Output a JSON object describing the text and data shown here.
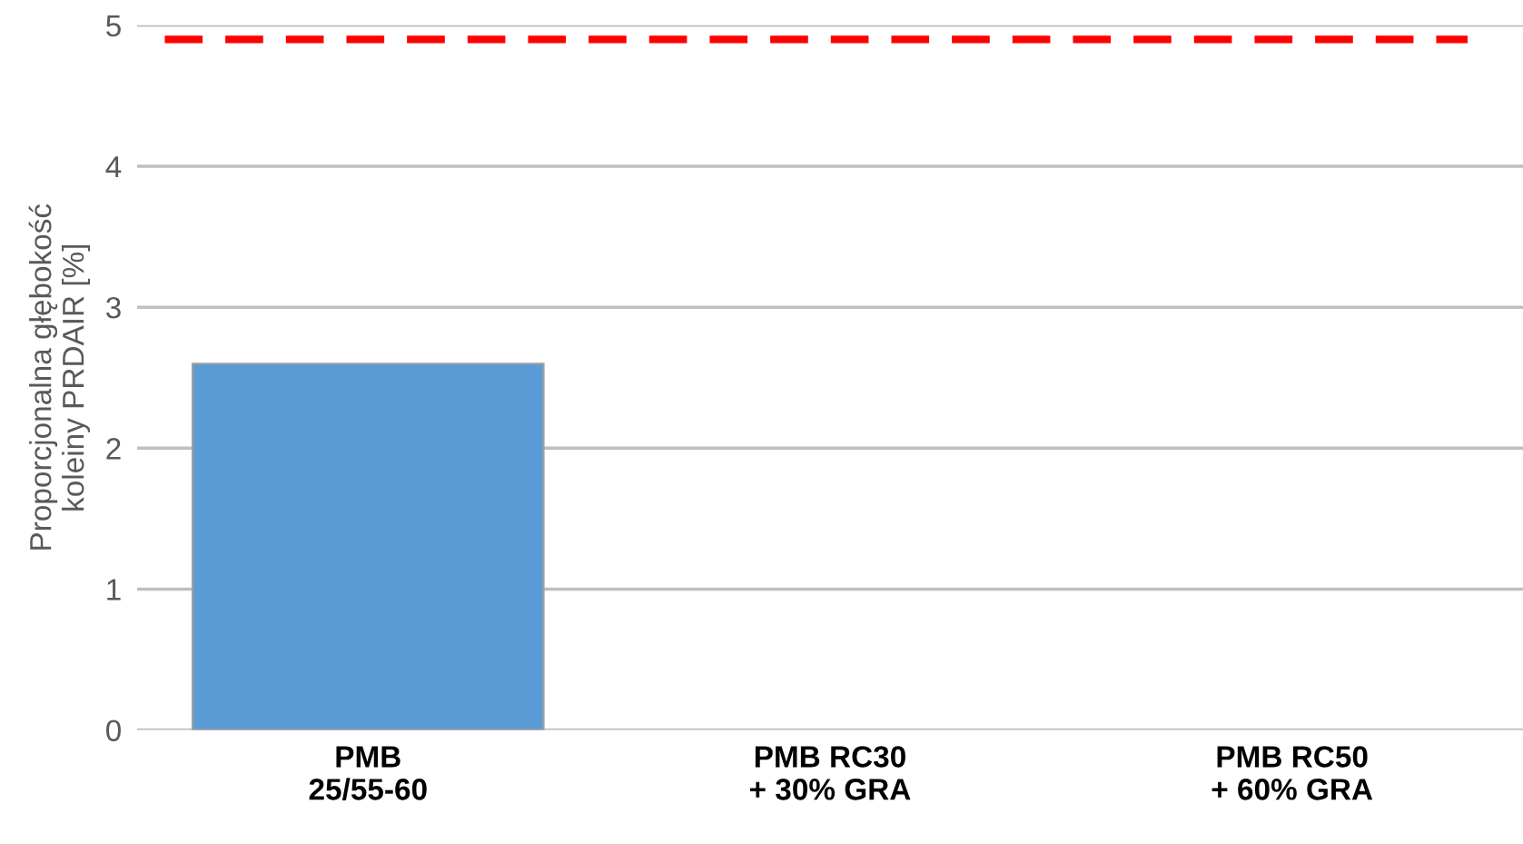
{
  "chart_data": {
    "type": "bar",
    "ylabel": "Proporcjonalna głębokość\nkoleiny PRDAIR [%]",
    "categories": [
      "PMB\n25/55-60",
      "PMB RC30\n+ 30% GRA",
      "PMB RC50\n+ 60% GRA"
    ],
    "values": [
      2.6,
      null,
      null
    ],
    "color": "#5b9bd5",
    "ylim": [
      0,
      5
    ],
    "yticks": [
      0,
      1,
      2,
      3,
      4,
      5
    ],
    "grid": "y",
    "ref_lines": [
      {
        "axis": "y",
        "value": 4.9,
        "color": "#ff0000",
        "line_style": "dashed"
      }
    ]
  }
}
